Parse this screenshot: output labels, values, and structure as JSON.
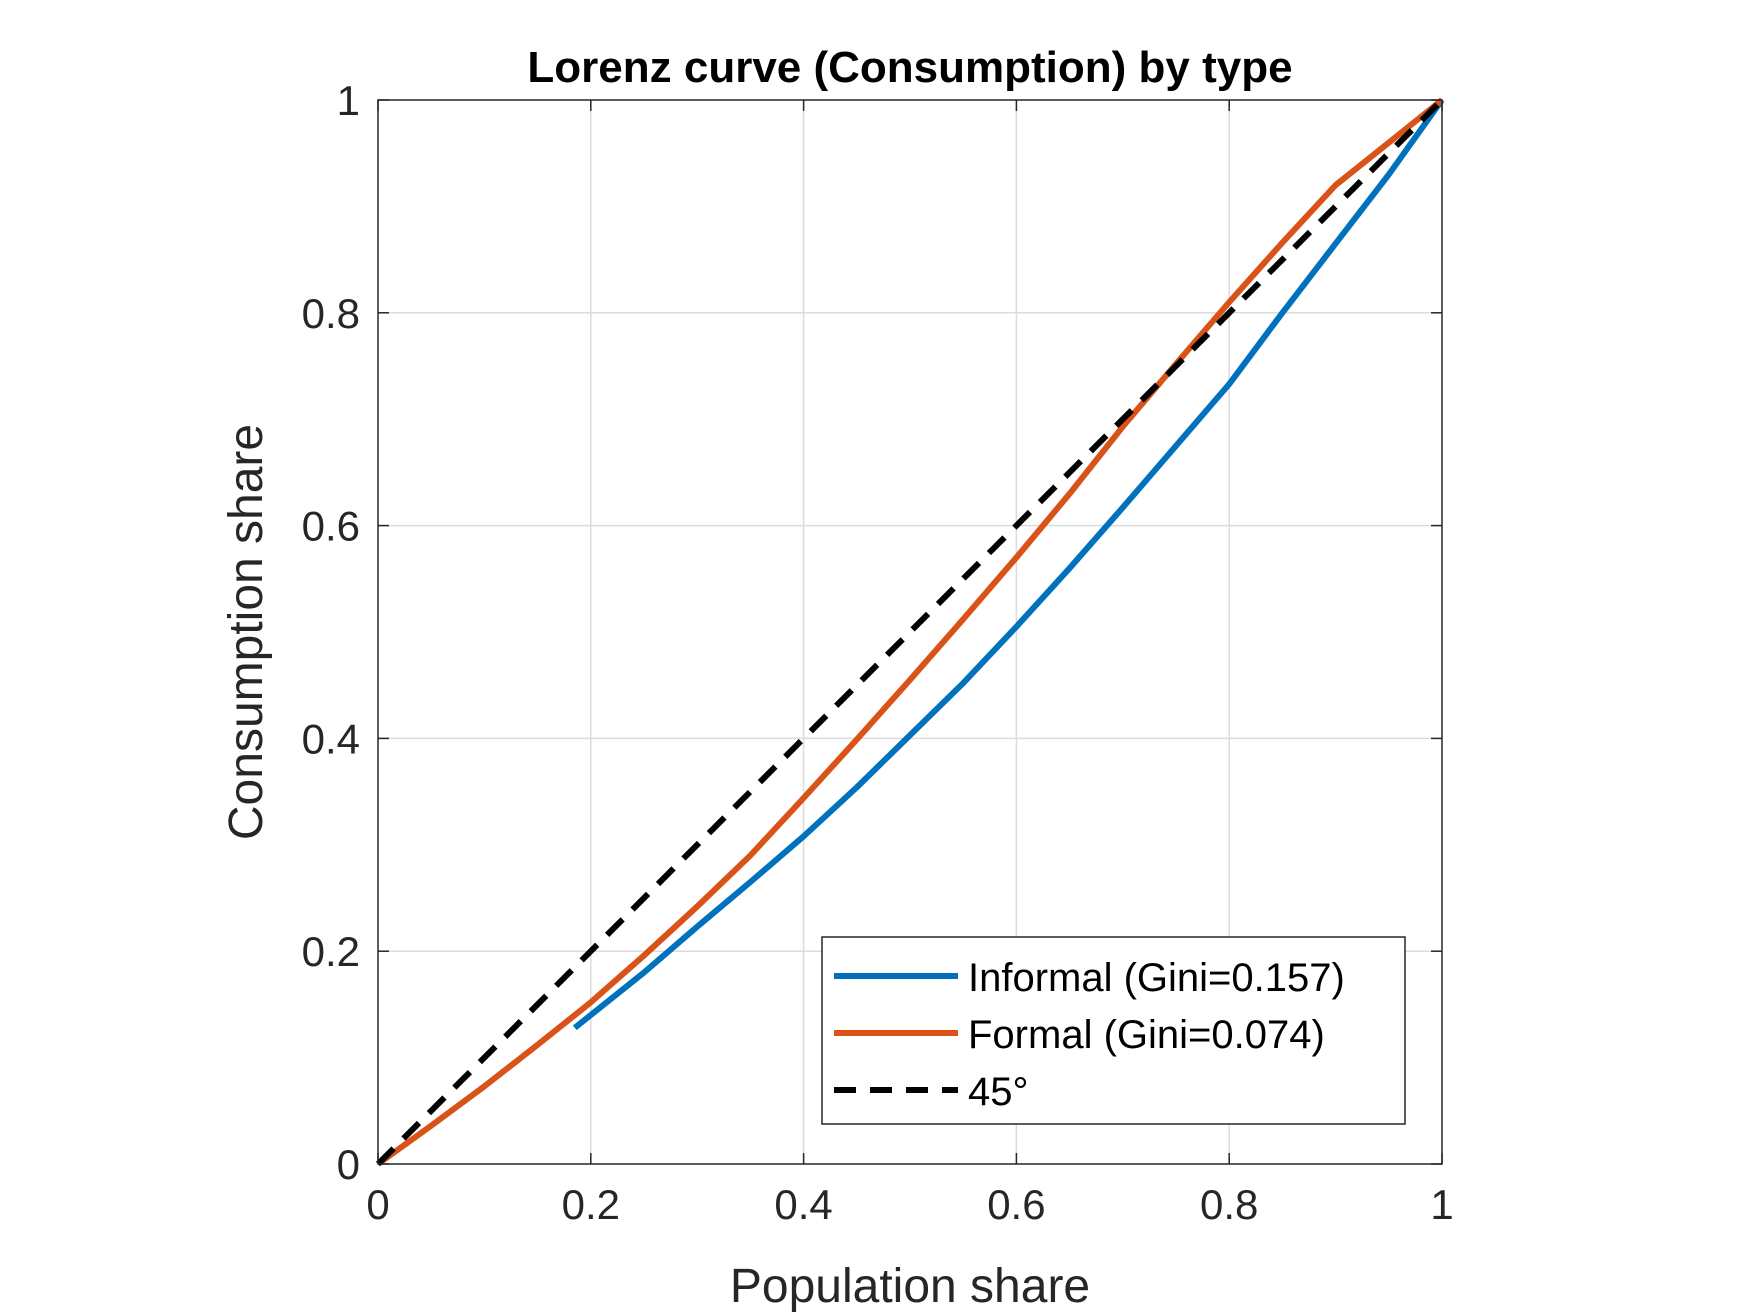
{
  "chart_data": {
    "type": "line",
    "title": "Lorenz curve (Consumption) by type",
    "xlabel": "Population share",
    "ylabel": "Consumption share",
    "xlim": [
      0,
      1
    ],
    "ylim": [
      0,
      1
    ],
    "xticks": [
      0,
      0.2,
      0.4,
      0.6,
      0.8,
      1
    ],
    "yticks": [
      0,
      0.2,
      0.4,
      0.6,
      0.8,
      1
    ],
    "xtick_labels": [
      "0",
      "0.2",
      "0.4",
      "0.6",
      "0.8",
      "1"
    ],
    "ytick_labels": [
      "0",
      "0.2",
      "0.4",
      "0.6",
      "0.8",
      "1"
    ],
    "grid": true,
    "legend_position": "bottom-right",
    "series": [
      {
        "name": "Informal (Gini=0.157)",
        "color": "#0072BD",
        "style": "solid",
        "x": [
          0.185,
          0.25,
          0.3,
          0.35,
          0.4,
          0.45,
          0.5,
          0.55,
          0.6,
          0.65,
          0.7,
          0.75,
          0.8,
          0.85,
          0.9,
          0.95,
          1.0
        ],
        "y": [
          0.128,
          0.18,
          0.223,
          0.265,
          0.308,
          0.354,
          0.403,
          0.452,
          0.505,
          0.56,
          0.617,
          0.675,
          0.733,
          0.8,
          0.865,
          0.93,
          1.0
        ]
      },
      {
        "name": "Formal (Gini=0.074)",
        "color": "#D95319",
        "style": "solid",
        "x": [
          0.0,
          0.05,
          0.1,
          0.15,
          0.2,
          0.25,
          0.3,
          0.35,
          0.4,
          0.45,
          0.5,
          0.55,
          0.6,
          0.65,
          0.7,
          0.75,
          0.8,
          0.85,
          0.9,
          0.95,
          1.0
        ],
        "y": [
          0.0,
          0.036,
          0.073,
          0.112,
          0.152,
          0.196,
          0.242,
          0.29,
          0.344,
          0.399,
          0.455,
          0.512,
          0.57,
          0.63,
          0.693,
          0.752,
          0.81,
          0.866,
          0.92,
          0.96,
          1.0
        ]
      },
      {
        "name": "45°",
        "color": "#000000",
        "style": "dashed",
        "x": [
          0,
          1
        ],
        "y": [
          0,
          1
        ]
      }
    ]
  }
}
